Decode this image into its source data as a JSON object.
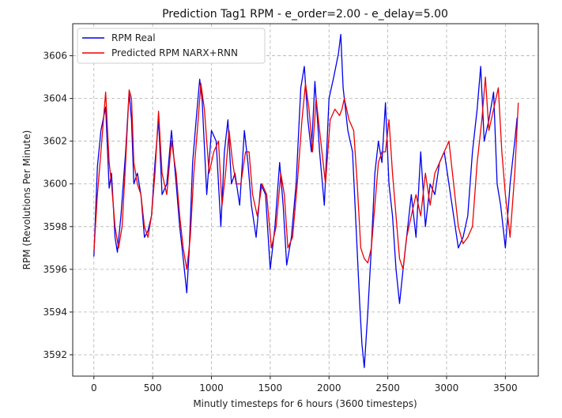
{
  "chart_data": {
    "type": "line",
    "title": "Prediction Tag1 RPM - e_order=2.00 - e_delay=5.00",
    "xlabel": "Minutly timesteps for 6 hours (3600 timesteps)",
    "ylabel": "RPM (Revolutions Per Minute)",
    "xlim": [
      -180,
      3780
    ],
    "ylim": [
      3591.0,
      3607.5
    ],
    "xticks": [
      0,
      500,
      1000,
      1500,
      2000,
      2500,
      3000,
      3500
    ],
    "yticks": [
      3592,
      3594,
      3596,
      3598,
      3600,
      3602,
      3604,
      3606
    ],
    "grid": true,
    "legend_position": "top-left",
    "series": [
      {
        "name": "RPM Real",
        "color": "#0000ee",
        "x": [
          0,
          30,
          60,
          100,
          130,
          150,
          180,
          200,
          230,
          270,
          300,
          320,
          340,
          370,
          400,
          430,
          460,
          490,
          520,
          550,
          580,
          620,
          660,
          700,
          730,
          760,
          790,
          810,
          840,
          870,
          900,
          920,
          960,
          1000,
          1040,
          1080,
          1110,
          1140,
          1170,
          1200,
          1240,
          1280,
          1310,
          1340,
          1380,
          1420,
          1460,
          1500,
          1540,
          1580,
          1610,
          1640,
          1680,
          1720,
          1760,
          1790,
          1820,
          1850,
          1880,
          1920,
          1960,
          2000,
          2040,
          2080,
          2100,
          2120,
          2160,
          2200,
          2230,
          2260,
          2280,
          2300,
          2330,
          2360,
          2390,
          2420,
          2450,
          2480,
          2510,
          2540,
          2570,
          2600,
          2630,
          2660,
          2700,
          2740,
          2780,
          2820,
          2860,
          2900,
          2940,
          2980,
          3020,
          3060,
          3100,
          3140,
          3180,
          3220,
          3260,
          3290,
          3320,
          3360,
          3400,
          3430,
          3460,
          3500,
          3540,
          3580,
          3600
        ],
        "values": [
          3596.6,
          3600.8,
          3602.5,
          3603.6,
          3599.8,
          3600.5,
          3597.5,
          3596.8,
          3598.5,
          3601.5,
          3604.3,
          3603.0,
          3600.0,
          3600.5,
          3599.5,
          3597.5,
          3597.8,
          3598.5,
          3601.0,
          3603.0,
          3599.5,
          3600.0,
          3602.5,
          3600.0,
          3598.0,
          3596.5,
          3594.9,
          3596.8,
          3601.0,
          3603.0,
          3604.9,
          3604.0,
          3599.5,
          3602.5,
          3602.0,
          3598.0,
          3601.5,
          3603.0,
          3600.0,
          3600.5,
          3599.0,
          3602.5,
          3601.0,
          3599.0,
          3597.5,
          3600.0,
          3599.5,
          3596.0,
          3598.0,
          3601.0,
          3599.0,
          3596.2,
          3597.5,
          3600.0,
          3604.5,
          3605.5,
          3603.0,
          3601.5,
          3604.8,
          3601.5,
          3599.0,
          3604.0,
          3605.0,
          3606.1,
          3607.0,
          3604.5,
          3602.5,
          3601.5,
          3598.0,
          3594.5,
          3592.5,
          3591.4,
          3594.0,
          3597.0,
          3600.5,
          3602.0,
          3601.0,
          3603.8,
          3600.0,
          3598.5,
          3596.0,
          3594.4,
          3596.0,
          3597.5,
          3599.5,
          3597.5,
          3601.5,
          3598.0,
          3600.0,
          3599.5,
          3601.0,
          3601.5,
          3600.0,
          3598.5,
          3597.0,
          3597.5,
          3598.5,
          3601.5,
          3603.5,
          3605.5,
          3602.0,
          3603.0,
          3604.3,
          3600.0,
          3599.0,
          3597.0,
          3600.0,
          3602.0,
          3603.1
        ]
      },
      {
        "name": "Predicted RPM NARX+RNN",
        "color": "#ee0000",
        "x": [
          0,
          30,
          60,
          100,
          130,
          150,
          180,
          210,
          240,
          270,
          300,
          320,
          340,
          370,
          400,
          430,
          460,
          490,
          520,
          550,
          580,
          620,
          660,
          700,
          730,
          760,
          790,
          820,
          850,
          880,
          910,
          940,
          980,
          1020,
          1060,
          1090,
          1120,
          1150,
          1180,
          1210,
          1250,
          1290,
          1320,
          1350,
          1390,
          1430,
          1470,
          1510,
          1550,
          1590,
          1620,
          1650,
          1690,
          1730,
          1770,
          1800,
          1830,
          1860,
          1890,
          1930,
          1970,
          2010,
          2050,
          2090,
          2110,
          2130,
          2170,
          2210,
          2240,
          2270,
          2300,
          2330,
          2360,
          2390,
          2420,
          2450,
          2480,
          2510,
          2540,
          2570,
          2600,
          2630,
          2660,
          2700,
          2740,
          2780,
          2820,
          2860,
          2900,
          2940,
          2980,
          3020,
          3060,
          3100,
          3140,
          3180,
          3220,
          3260,
          3300,
          3330,
          3360,
          3400,
          3440,
          3470,
          3500,
          3540,
          3580,
          3610
        ],
        "values": [
          3596.8,
          3599.5,
          3601.5,
          3604.3,
          3601.0,
          3600.0,
          3598.0,
          3597.0,
          3598.0,
          3601.0,
          3604.4,
          3604.0,
          3601.0,
          3600.0,
          3599.5,
          3598.0,
          3597.5,
          3598.5,
          3600.5,
          3603.4,
          3600.5,
          3599.5,
          3602.0,
          3600.5,
          3598.5,
          3597.0,
          3596.0,
          3597.5,
          3600.5,
          3602.5,
          3604.7,
          3603.5,
          3600.5,
          3601.5,
          3602.0,
          3599.0,
          3600.5,
          3602.5,
          3601.0,
          3600.0,
          3600.0,
          3601.5,
          3601.5,
          3599.5,
          3598.5,
          3600.0,
          3599.5,
          3597.0,
          3598.0,
          3600.5,
          3599.5,
          3597.0,
          3597.5,
          3600.0,
          3603.0,
          3604.7,
          3603.5,
          3601.5,
          3604.0,
          3602.0,
          3600.0,
          3603.0,
          3603.5,
          3603.2,
          3603.5,
          3604.0,
          3603.0,
          3602.5,
          3600.0,
          3597.0,
          3596.5,
          3596.3,
          3597.0,
          3599.0,
          3601.0,
          3601.5,
          3601.5,
          3603.0,
          3600.5,
          3598.5,
          3596.5,
          3596.0,
          3597.5,
          3598.5,
          3599.5,
          3598.5,
          3600.5,
          3599.0,
          3600.5,
          3601.0,
          3601.5,
          3602.0,
          3600.0,
          3598.0,
          3597.2,
          3597.5,
          3598.0,
          3601.0,
          3603.0,
          3605.0,
          3602.5,
          3603.5,
          3604.5,
          3601.5,
          3599.5,
          3597.5,
          3600.5,
          3603.8
        ]
      }
    ]
  }
}
